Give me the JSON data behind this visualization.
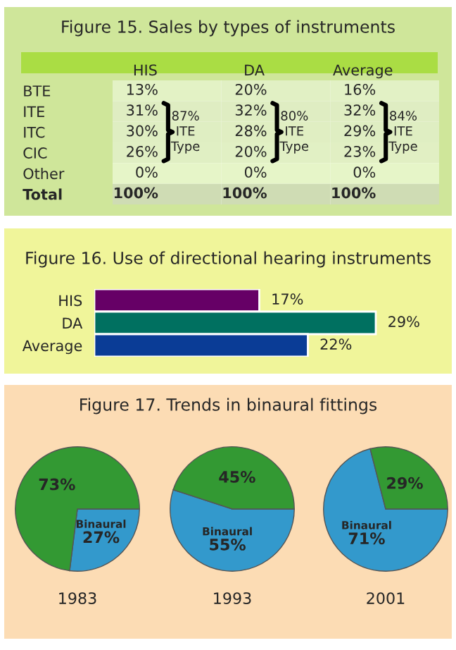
{
  "chart_data": [
    {
      "type": "heatmap",
      "title": "Figure 15. Sales by types of instruments",
      "categories": [
        "HIS",
        "DA",
        "Average"
      ],
      "y_categories": [
        "BTE",
        "ITE",
        "ITC",
        "CIC",
        "Other",
        "Total"
      ],
      "cells": [
        [
          13,
          20,
          16
        ],
        [
          31,
          32,
          32
        ],
        [
          30,
          28,
          29
        ],
        [
          26,
          20,
          23
        ],
        [
          0,
          0,
          0
        ],
        [
          100,
          100,
          100
        ]
      ],
      "cell_labels": [
        [
          "13%",
          "20%",
          "16%"
        ],
        [
          "31%",
          "32%",
          "32%"
        ],
        [
          "30%",
          "28%",
          "29%"
        ],
        [
          "26%",
          "20%",
          "23%"
        ],
        [
          "0%",
          "0%",
          "0%"
        ],
        [
          "100%",
          "100%",
          "100%"
        ]
      ],
      "color": "#e6f5c8",
      "annotations": [
        "87%\nITE\nType",
        "80%\nITE\nType",
        "84%\nITE\nType"
      ]
    },
    {
      "type": "bar",
      "orientation": "horizontal",
      "title": "Figure 16. Use of directional hearing instruments",
      "categories": [
        "HIS",
        "DA",
        "Average"
      ],
      "values": [
        17,
        29,
        22
      ],
      "colors": [
        "#660066",
        "#007060",
        "#0a3c96"
      ],
      "value_labels": [
        "17%",
        "29%",
        "22%"
      ]
    },
    {
      "type": "pie",
      "title": "Figure 17. Trends in binaural fittings",
      "xlabel": "1983",
      "categories": [
        "Binaural",
        null
      ],
      "values": [
        27,
        73
      ],
      "colors": [
        "#3399cc",
        "#339933"
      ],
      "value_labels": [
        "27%",
        "73%"
      ]
    },
    {
      "type": "pie",
      "xlabel": "1993",
      "categories": [
        "Binaural",
        null
      ],
      "values": [
        55,
        45
      ],
      "colors": [
        "#3399cc",
        "#339933"
      ],
      "value_labels": [
        "55%",
        "45%"
      ]
    },
    {
      "type": "pie",
      "xlabel": "2001",
      "categories": [
        "Binaural",
        null
      ],
      "values": [
        71,
        29
      ],
      "colors": [
        "#3399cc",
        "#339933"
      ],
      "value_labels": [
        "71%",
        "29%"
      ]
    }
  ]
}
